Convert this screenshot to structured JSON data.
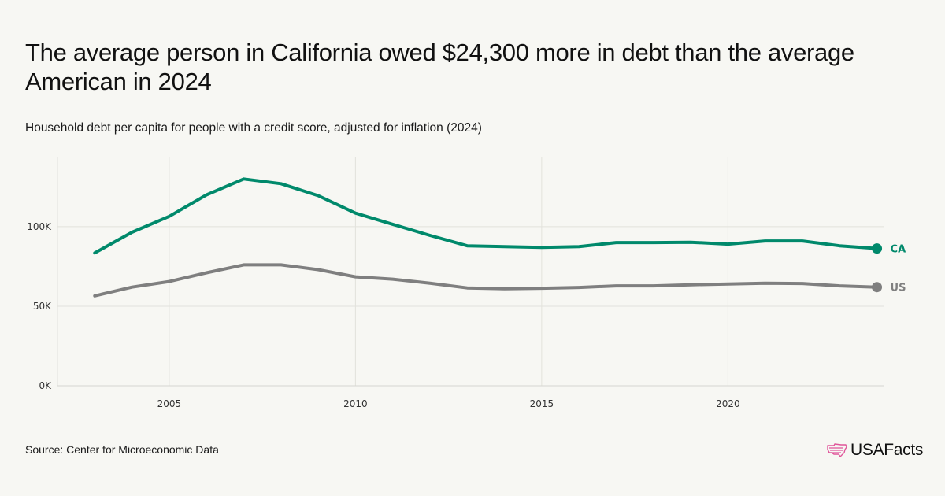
{
  "header": {
    "title": "The average person in California owed $24,300 more in debt than the average American in 2024",
    "subtitle": "Household debt per capita for people with a credit score, adjusted for inflation (2024)"
  },
  "footer": {
    "source": "Source: Center for Microeconomic Data",
    "logo_text": "USAFacts"
  },
  "colors": {
    "background": "#f7f7f3",
    "ca": "#00896b",
    "us": "#7f7f7f",
    "logo_accent": "#e0569a"
  },
  "chart_data": {
    "type": "line",
    "x": [
      2003,
      2004,
      2005,
      2006,
      2007,
      2008,
      2009,
      2010,
      2011,
      2012,
      2013,
      2014,
      2015,
      2016,
      2017,
      2018,
      2019,
      2020,
      2021,
      2022,
      2023,
      2024
    ],
    "series": [
      {
        "name": "CA",
        "color": "#00896b",
        "values": [
          83500,
          96500,
          106500,
          120000,
          130000,
          127000,
          119500,
          108500,
          101500,
          94500,
          88000,
          87500,
          87000,
          87500,
          90000,
          90000,
          90200,
          89000,
          91000,
          91000,
          88000,
          86300
        ]
      },
      {
        "name": "US",
        "color": "#7f7f7f",
        "values": [
          56500,
          62000,
          65500,
          71000,
          76000,
          76000,
          73000,
          68500,
          67000,
          64500,
          61500,
          61000,
          61300,
          61800,
          62800,
          62800,
          63500,
          64000,
          64500,
          64300,
          62800,
          62000
        ]
      }
    ],
    "x_ticks": [
      2005,
      2010,
      2015,
      2020
    ],
    "x_tick_labels": [
      "2005",
      "2010",
      "2015",
      "2020"
    ],
    "y_ticks": [
      0,
      50000,
      100000
    ],
    "y_tick_labels": [
      "0K",
      "50K",
      "100K"
    ],
    "ylim": [
      0,
      143500
    ],
    "xlim": [
      2002,
      2024.2
    ],
    "grid": true,
    "end_labels": true
  }
}
